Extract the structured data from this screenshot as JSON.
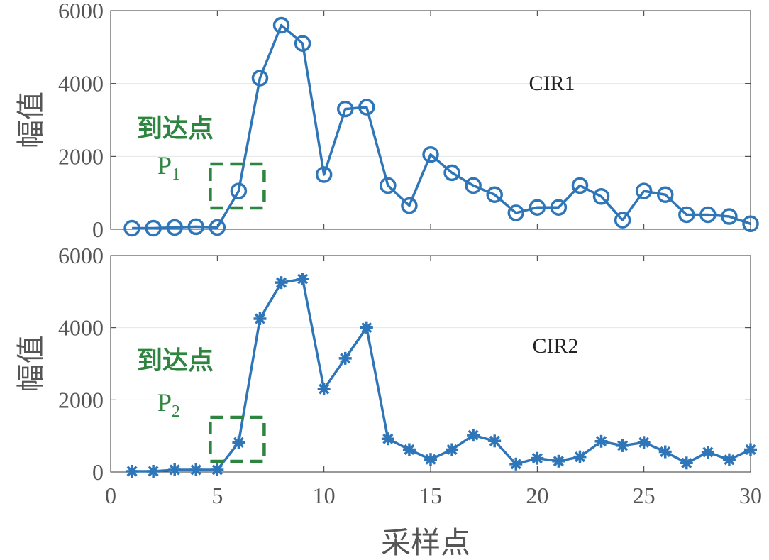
{
  "figure": {
    "xlabel": "采样点",
    "accent_color": "#2f76b8",
    "annotation_color": "#2e8540"
  },
  "chart_data": [
    {
      "type": "line",
      "marker": "circle",
      "series_label": "CIR1",
      "ylabel": "幅值",
      "xlabel": "",
      "xlim": [
        0,
        30
      ],
      "ylim": [
        0,
        6000
      ],
      "xticks": [
        "0",
        "5",
        "10",
        "15",
        "20",
        "25",
        "30"
      ],
      "yticks": [
        "0",
        "2000",
        "4000",
        "6000"
      ],
      "grid": true,
      "x": [
        1,
        2,
        3,
        4,
        5,
        6,
        7,
        8,
        9,
        10,
        11,
        12,
        13,
        14,
        15,
        16,
        17,
        18,
        19,
        20,
        21,
        22,
        23,
        24,
        25,
        26,
        27,
        28,
        29,
        30
      ],
      "y": [
        30,
        30,
        50,
        70,
        50,
        1050,
        4150,
        5600,
        5100,
        1500,
        3300,
        3350,
        1200,
        650,
        2050,
        1550,
        1200,
        950,
        450,
        600,
        600,
        1200,
        900,
        250,
        1050,
        950,
        400,
        400,
        350,
        150
      ],
      "annotation": {
        "text": "到达点",
        "point": "P",
        "subscript": "1",
        "x": 6
      }
    },
    {
      "type": "line",
      "marker": "asterisk",
      "series_label": "CIR2",
      "ylabel": "幅值",
      "xlabel": "采样点",
      "xlim": [
        0,
        30
      ],
      "ylim": [
        0,
        6000
      ],
      "xticks": [
        "0",
        "5",
        "10",
        "15",
        "20",
        "25",
        "30"
      ],
      "yticks": [
        "0",
        "2000",
        "4000",
        "6000"
      ],
      "grid": true,
      "x": [
        1,
        2,
        3,
        4,
        5,
        6,
        7,
        8,
        9,
        10,
        11,
        12,
        13,
        14,
        15,
        16,
        17,
        18,
        19,
        20,
        21,
        22,
        23,
        24,
        25,
        26,
        27,
        28,
        29,
        30
      ],
      "y": [
        20,
        20,
        60,
        60,
        60,
        820,
        4250,
        5250,
        5350,
        2300,
        3150,
        4000,
        920,
        620,
        350,
        620,
        1020,
        860,
        220,
        380,
        300,
        420,
        850,
        730,
        820,
        560,
        250,
        550,
        340,
        620
      ],
      "annotation": {
        "text": "到达点",
        "point": "P",
        "subscript": "2",
        "x": 6
      }
    }
  ]
}
